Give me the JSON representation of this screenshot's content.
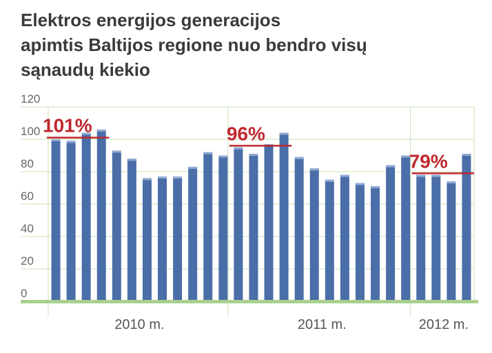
{
  "chart_data": {
    "type": "bar",
    "title": [
      "Elektros energijos generacijos",
      "apimtis Baltijos regione nuo bendro visų",
      "sąnaudų kiekio"
    ],
    "categories": [
      "2010 m.",
      null,
      null,
      null,
      null,
      null,
      null,
      null,
      null,
      null,
      null,
      null,
      "2011 m.",
      null,
      null,
      null,
      null,
      null,
      null,
      null,
      null,
      null,
      null,
      null,
      "2012 m.",
      null,
      null,
      null
    ],
    "values": [
      100,
      99,
      104,
      106,
      93,
      88,
      76,
      77,
      77,
      83,
      92,
      90,
      95,
      91,
      97,
      104,
      89,
      82,
      75,
      78,
      73,
      71,
      84,
      90,
      78,
      78,
      74,
      91
    ],
    "color": "#4a6ea8",
    "ylim": [
      0,
      120
    ],
    "yticks": [
      0,
      20,
      40,
      60,
      80,
      100,
      120
    ],
    "grid": true,
    "annotations": [
      {
        "value": 101,
        "label": "101%"
      },
      {
        "value": 96,
        "label": "96%"
      },
      {
        "value": 79,
        "label": "79%"
      }
    ]
  }
}
